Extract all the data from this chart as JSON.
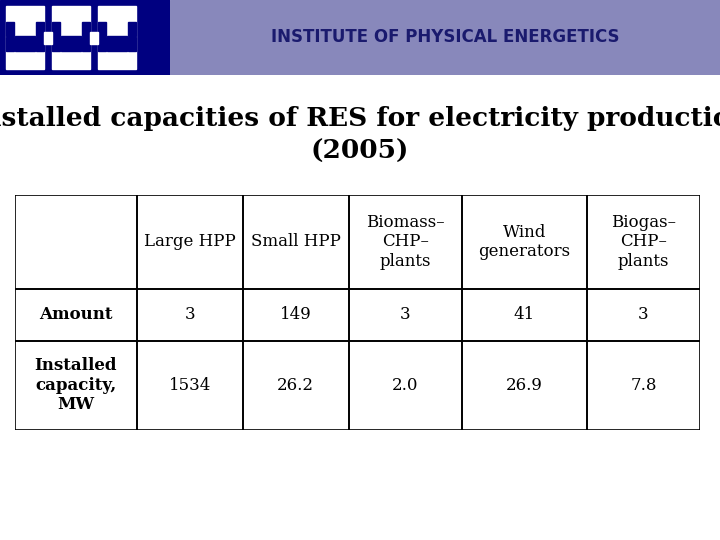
{
  "title_line1": "Installed capacities of RES for electricity production",
  "title_line2": "(2005)",
  "header_text": "INSTITUTE OF PHYSICAL ENERGETICS",
  "header_bg_color": "#8888bb",
  "header_text_color": "#1a1a6e",
  "bg_color": "#ffffff",
  "logo_bg_color": "#000080",
  "col_headers": [
    "",
    "Large HPP",
    "Small HPP",
    "Biomass–\nCHP–\nplants",
    "Wind\ngenerators",
    "Biogas–\nCHP–\nplants"
  ],
  "row_labels": [
    "Amount",
    "Installed\ncapacity,\nMW"
  ],
  "row1_values": [
    "3",
    "149",
    "3",
    "41",
    "3"
  ],
  "row2_values": [
    "1534",
    "26.2",
    "2.0",
    "26.9",
    "7.8"
  ],
  "table_border_color": "#000000",
  "title_fontsize": 19,
  "header_fontsize": 12,
  "table_fontsize": 12
}
